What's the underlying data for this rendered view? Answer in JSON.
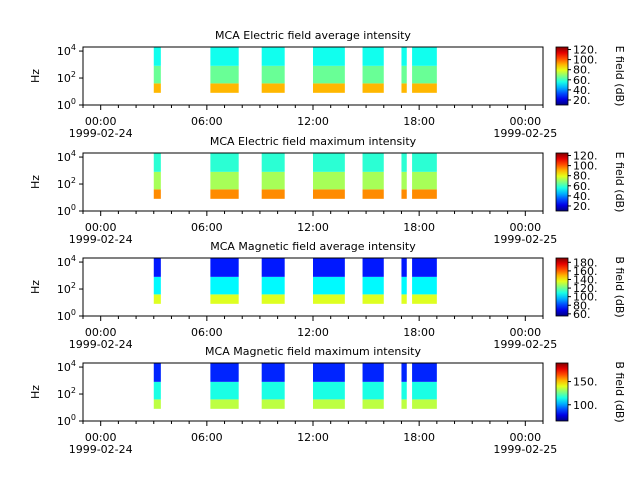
{
  "chart_data": [
    {
      "type": "heatmap",
      "title": "MCA  Electric field average intensity",
      "ylabel": "Hz",
      "colorbar_label": "E field (dB)",
      "colorbar_ticks": [
        "20.",
        "40.",
        "60.",
        "80.",
        "100.",
        "120."
      ],
      "colorbar_range": [
        10,
        125
      ],
      "ylim": [
        1,
        20000
      ],
      "y_ticks": [
        "10^0",
        "10^2",
        "10^4"
      ],
      "x_tick_labels": [
        [
          "00:00",
          "1999-02-24"
        ],
        [
          "06:00",
          ""
        ],
        [
          "12:00",
          ""
        ],
        [
          "18:00",
          ""
        ],
        [
          "00:00",
          "1999-02-25"
        ]
      ],
      "xlim_hours": [
        -1.0,
        25.0
      ],
      "data_blocks": [
        [
          3.0,
          3.4
        ],
        [
          6.2,
          7.8
        ],
        [
          9.1,
          10.4
        ],
        [
          12.0,
          13.8
        ],
        [
          14.8,
          16.0
        ],
        [
          17.0,
          17.3
        ],
        [
          17.6,
          19.0
        ]
      ],
      "level_low_hz": 40,
      "level_mid_hz": 800,
      "level_high_hz": 20000,
      "value_low": 90,
      "value_mid": 65,
      "value_high": 55
    },
    {
      "type": "heatmap",
      "title": "MCA  Electric field maximum intensity",
      "ylabel": "Hz",
      "colorbar_label": "E field (dB)",
      "colorbar_ticks": [
        "20.",
        "40.",
        "60.",
        "80.",
        "100.",
        "120."
      ],
      "colorbar_range": [
        10,
        125
      ],
      "ylim": [
        1,
        20000
      ],
      "y_ticks": [
        "10^0",
        "10^2",
        "10^4"
      ],
      "x_tick_labels": [
        [
          "00:00",
          "1999-02-24"
        ],
        [
          "06:00",
          ""
        ],
        [
          "12:00",
          ""
        ],
        [
          "18:00",
          ""
        ],
        [
          "00:00",
          "1999-02-25"
        ]
      ],
      "xlim_hours": [
        -1.0,
        25.0
      ],
      "data_blocks": [
        [
          3.0,
          3.4
        ],
        [
          6.2,
          7.8
        ],
        [
          9.1,
          10.4
        ],
        [
          12.0,
          13.8
        ],
        [
          14.8,
          16.0
        ],
        [
          17.0,
          17.3
        ],
        [
          17.6,
          19.0
        ]
      ],
      "level_low_hz": 40,
      "level_mid_hz": 800,
      "level_high_hz": 20000,
      "value_low": 95,
      "value_mid": 72,
      "value_high": 58
    },
    {
      "type": "heatmap",
      "title": "MCA  Magnetic field average intensity",
      "ylabel": "Hz",
      "colorbar_label": "B field (dB)",
      "colorbar_ticks": [
        "60.",
        "80.",
        "100.",
        "120.",
        "140.",
        "160.",
        "180."
      ],
      "colorbar_range": [
        55,
        190
      ],
      "ylim": [
        1,
        20000
      ],
      "y_ticks": [
        "10^0",
        "10^2",
        "10^4"
      ],
      "x_tick_labels": [
        [
          "00:00",
          "1999-02-24"
        ],
        [
          "06:00",
          ""
        ],
        [
          "12:00",
          ""
        ],
        [
          "18:00",
          ""
        ],
        [
          "00:00",
          "1999-02-25"
        ]
      ],
      "xlim_hours": [
        -1.0,
        25.0
      ],
      "data_blocks": [
        [
          3.0,
          3.4
        ],
        [
          6.2,
          7.8
        ],
        [
          9.1,
          10.4
        ],
        [
          12.0,
          13.8
        ],
        [
          14.8,
          16.0
        ],
        [
          17.0,
          17.3
        ],
        [
          17.6,
          19.0
        ]
      ],
      "level_low_hz": 40,
      "level_mid_hz": 800,
      "level_high_hz": 20000,
      "value_low": 135,
      "value_mid": 105,
      "value_high": 75
    },
    {
      "type": "heatmap",
      "title": "MCA  Magnetic field maximum intensity",
      "ylabel": "Hz",
      "colorbar_label": "B field (dB)",
      "colorbar_ticks": [
        "100.",
        "150."
      ],
      "colorbar_range": [
        65,
        190
      ],
      "ylim": [
        1,
        20000
      ],
      "y_ticks": [
        "10^0",
        "10^2",
        "10^4"
      ],
      "x_tick_labels": [
        [
          "00:00",
          "1999-02-24"
        ],
        [
          "06:00",
          ""
        ],
        [
          "12:00",
          ""
        ],
        [
          "18:00",
          ""
        ],
        [
          "00:00",
          "1999-02-25"
        ]
      ],
      "xlim_hours": [
        -1.0,
        25.0
      ],
      "data_blocks": [
        [
          3.0,
          3.4
        ],
        [
          6.2,
          7.8
        ],
        [
          9.1,
          10.4
        ],
        [
          12.0,
          13.8
        ],
        [
          14.8,
          16.0
        ],
        [
          17.0,
          17.3
        ],
        [
          17.6,
          19.0
        ]
      ],
      "level_low_hz": 40,
      "level_mid_hz": 800,
      "level_high_hz": 20000,
      "value_low": 135,
      "value_mid": 115,
      "value_high": 85
    }
  ]
}
